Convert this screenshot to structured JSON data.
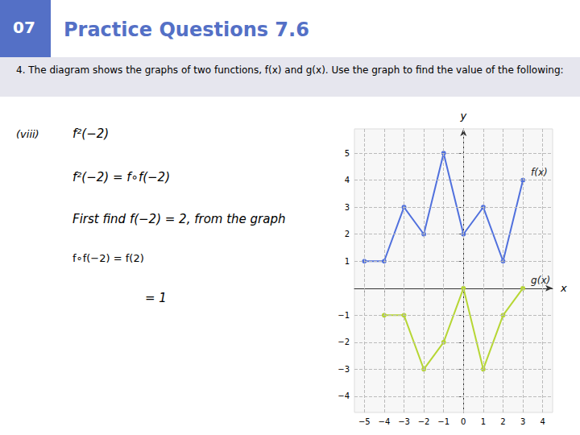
{
  "chart_data": {
    "type": "line",
    "title": "Practice Questions 7.6",
    "subtitle": "4. The diagram shows the graphs of two functions, f(x) and g(x). Use the graph to find the value of the following:",
    "annotations": [
      "07",
      "(viii)",
      "f²(−2)",
      "f²(−2) = f∘f(−2)",
      "First find f(−2) = 2, from the graph",
      "f∘f(−2) = f(2)",
      "= 1"
    ],
    "xlabel": "x",
    "ylabel": "y",
    "series": [
      {
        "name": "f(x)",
        "x": [
          -5,
          -4,
          -3,
          -2,
          -1,
          0,
          1,
          2,
          3
        ],
        "values": [
          1,
          1,
          3,
          2,
          5,
          2,
          3,
          1,
          4
        ]
      },
      {
        "name": "g(x)",
        "x": [
          -4,
          -3,
          -2,
          -1,
          0,
          1,
          2,
          3
        ],
        "values": [
          -1,
          -1,
          -3,
          -2,
          0,
          -3,
          -1,
          0
        ]
      }
    ],
    "marker": "circle",
    "xlim": [
      -5.5,
      4.5
    ],
    "ylim": [
      -4.6,
      5.9
    ],
    "xticks": [
      {
        "value": -5,
        "label": "−5"
      },
      {
        "value": -4,
        "label": "−4"
      },
      {
        "value": -3,
        "label": "−3"
      },
      {
        "value": -2,
        "label": "−2"
      },
      {
        "value": -1,
        "label": "−1"
      },
      0,
      1,
      2,
      3,
      4
    ],
    "yticks": [
      {
        "value": -4,
        "label": "−4"
      },
      {
        "value": -3,
        "label": "−3"
      },
      {
        "value": -2,
        "label": "−2"
      },
      {
        "value": -1,
        "label": "−1"
      },
      1,
      2,
      3,
      4,
      5
    ],
    "grid": true
  }
}
